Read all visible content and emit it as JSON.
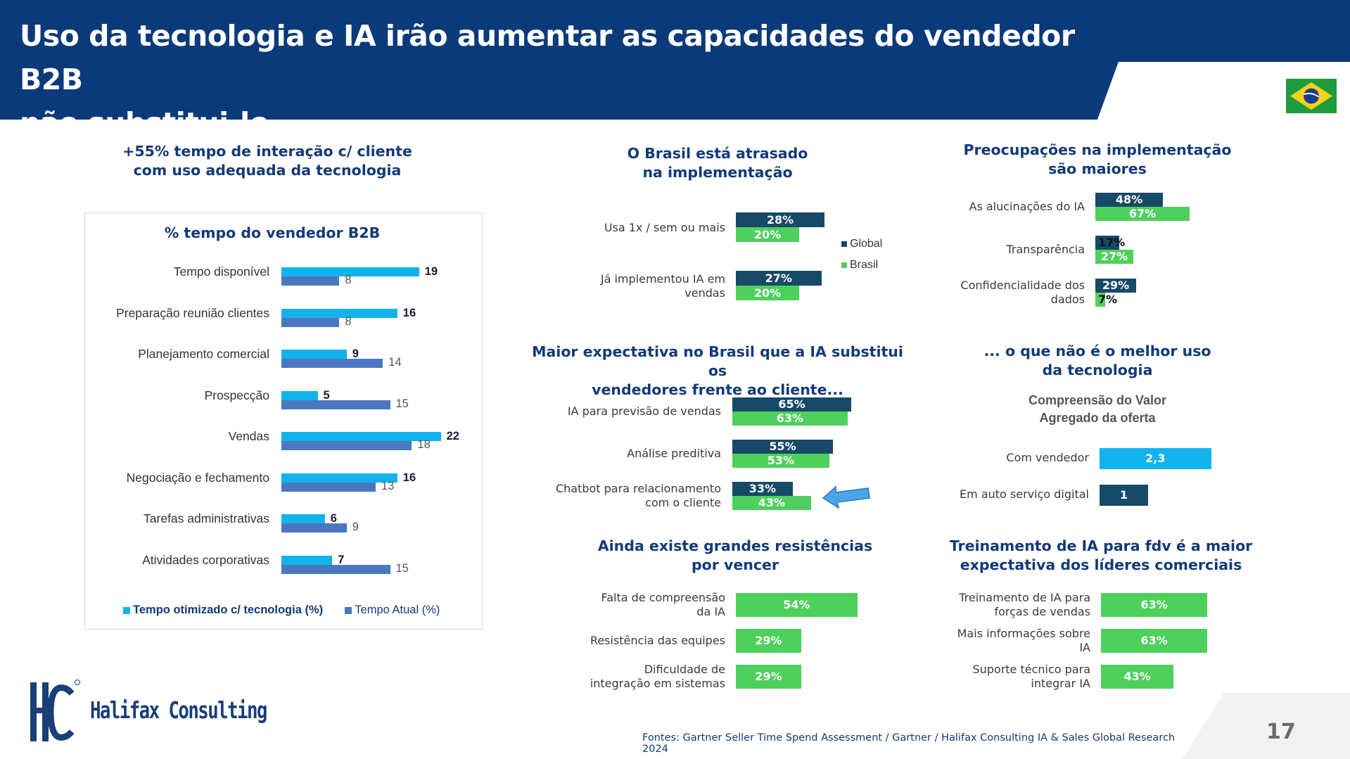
{
  "header": {
    "title_line1": "Uso da tecnologia e IA irão aumentar as capacidades do vendedor B2B",
    "title_line2": "não substitui-lo"
  },
  "colors": {
    "navy": "#0b3a7a",
    "cyan": "#12b3ec",
    "steel": "#4a78c0",
    "dark_teal": "#164a66",
    "green": "#4ed05c"
  },
  "left_section": {
    "title_line1": "+55% tempo de interação c/ cliente",
    "title_line2": "com uso adequada da tecnologia"
  },
  "footer": {
    "source": "Fontes: Gartner Seller Time Spend Assessment / Gartner /  Halifax Consulting IA & Sales Global Research 2024",
    "page_number": "17",
    "logo_text": "Halifax Consulting",
    "logo_mark": "HC"
  },
  "chart_data": [
    {
      "type": "bar",
      "orientation": "horizontal",
      "title": "% tempo do vendedor B2B",
      "categories": [
        "Tempo disponível",
        "Preparação reunião clientes",
        "Planejamento comercial",
        "Prospecção",
        "Vendas",
        "Negociação e fechamento",
        "Tarefas administrativas",
        "Atividades corporativas"
      ],
      "series": [
        {
          "name": "Tempo otimizado c/ tecnologia (%)",
          "values": [
            19,
            16,
            9,
            5,
            22,
            16,
            6,
            7
          ],
          "color": "#12b3ec"
        },
        {
          "name": "Tempo Atual (%)",
          "values": [
            8,
            8,
            14,
            15,
            18,
            13,
            9,
            15
          ],
          "color": "#4a78c0"
        }
      ],
      "value_labels": [
        [
          "19",
          "16",
          "9",
          "5",
          "22",
          "16",
          "6",
          "7"
        ],
        [
          "8",
          "8",
          "14",
          "15",
          "18",
          "13",
          "9",
          "15"
        ]
      ],
      "xlim": [
        0,
        25
      ],
      "legend": "bottom"
    },
    {
      "type": "bar",
      "orientation": "horizontal",
      "title_line1": "O Brasil está atrasado",
      "title_line2": "na implementação",
      "categories": [
        [
          "Usa 1x / sem ou mais"
        ],
        [
          "Já implementou IA em",
          "vendas"
        ]
      ],
      "series": [
        {
          "name": "Global",
          "values": [
            28,
            27
          ],
          "labels": [
            "28%",
            "27%"
          ],
          "color": "#164a66"
        },
        {
          "name": "Brasil",
          "values": [
            20,
            20
          ],
          "labels": [
            "20%",
            "20%"
          ],
          "color": "#4ed05c"
        }
      ],
      "xlim": [
        0,
        100
      ],
      "legend": "right"
    },
    {
      "type": "bar",
      "orientation": "horizontal",
      "title_line1": "Preocupações na implementação",
      "title_line2": "são maiores",
      "categories": [
        [
          "As alucinações do IA"
        ],
        [
          "Transparência"
        ],
        [
          "Confidencialidade dos",
          "dados"
        ]
      ],
      "series": [
        {
          "name": "Global",
          "values": [
            48,
            17,
            29
          ],
          "labels": [
            "48%",
            "17%",
            "29%"
          ],
          "color": "#164a66"
        },
        {
          "name": "Brasil",
          "values": [
            67,
            27,
            7
          ],
          "labels": [
            "67%",
            "27%",
            "7%"
          ],
          "color": "#4ed05c"
        }
      ],
      "xlim": [
        0,
        100
      ]
    },
    {
      "type": "bar",
      "orientation": "horizontal",
      "title_line1": "Maior expectativa no Brasil que a IA substitui os",
      "title_line2": "vendedores frente ao cliente...",
      "categories": [
        [
          "IA para previsão de vendas"
        ],
        [
          "Análise preditiva"
        ],
        [
          "Chatbot para relacionamento",
          "com o cliente"
        ]
      ],
      "series": [
        {
          "name": "Global",
          "values": [
            65,
            55,
            33
          ],
          "labels": [
            "65%",
            "55%",
            "33%"
          ],
          "color": "#164a66"
        },
        {
          "name": "Brasil",
          "values": [
            63,
            53,
            43
          ],
          "labels": [
            "63%",
            "53%",
            "43%"
          ],
          "color": "#4ed05c"
        }
      ],
      "xlim": [
        0,
        100
      ],
      "annotation": "arrow pointing to Chatbot Brasil bar"
    },
    {
      "type": "bar",
      "orientation": "horizontal",
      "title_line1": "... o que não é o melhor uso",
      "title_line2": "da tecnologia",
      "subtitle_line1": "Compreensão do Valor",
      "subtitle_line2": "Agregado da oferta",
      "categories": [
        [
          "Com vendedor"
        ],
        [
          "Em auto serviço digital"
        ]
      ],
      "series": [
        {
          "values": [
            2.3,
            1
          ],
          "labels": [
            "2,3",
            "1"
          ],
          "colors": [
            "#12b3ec",
            "#164a66"
          ]
        }
      ],
      "xlim": [
        0,
        3
      ]
    },
    {
      "type": "bar",
      "orientation": "horizontal",
      "title_line1": "Ainda existe grandes resistências",
      "title_line2": "por vencer",
      "categories": [
        [
          "Falta de compreensão",
          "da IA"
        ],
        [
          "Resistência das equipes"
        ],
        [
          "Dificuldade de",
          "integração em sistemas"
        ]
      ],
      "series": [
        {
          "values": [
            54,
            29,
            29
          ],
          "labels": [
            "54%",
            "29%",
            "29%"
          ],
          "color": "#4ed05c"
        }
      ],
      "xlim": [
        0,
        100
      ]
    },
    {
      "type": "bar",
      "orientation": "horizontal",
      "title_line1": "Treinamento de IA para fdv é a maior",
      "title_line2": "expectativa dos líderes comerciais",
      "categories": [
        [
          "Treinamento de IA para",
          "forças de vendas"
        ],
        [
          "Mais informações sobre",
          "IA"
        ],
        [
          "Suporte técnico para",
          "integrar IA"
        ]
      ],
      "series": [
        {
          "values": [
            63,
            63,
            43
          ],
          "labels": [
            "63%",
            "63%",
            "43%"
          ],
          "color": "#4ed05c"
        }
      ],
      "xlim": [
        0,
        100
      ]
    }
  ]
}
